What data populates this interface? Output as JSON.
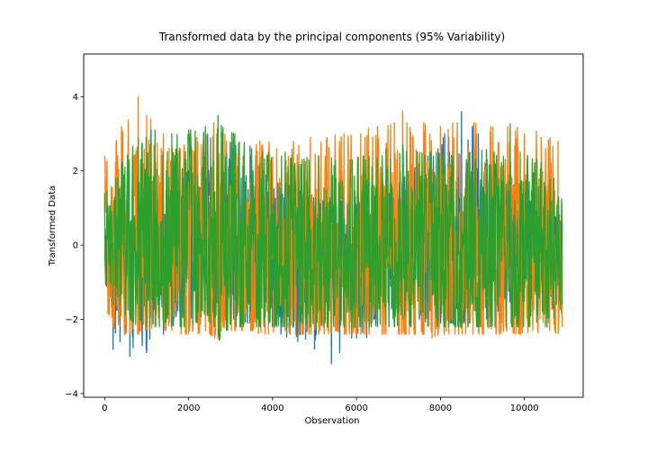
{
  "chart_data": {
    "type": "line",
    "title": "Transformed data by the principal components (95% Variability)",
    "xlabel": "Observation",
    "ylabel": "Transformed Data",
    "xlim": [
      -500,
      11400
    ],
    "ylim": [
      -4.1,
      5.15
    ],
    "xticks": [
      0,
      2000,
      4000,
      6000,
      8000,
      10000
    ],
    "xtick_labels": [
      "0",
      "2000",
      "4000",
      "6000",
      "8000",
      "10000"
    ],
    "yticks": [
      -4,
      -2,
      0,
      2,
      4
    ],
    "ytick_labels": [
      "−4",
      "−2",
      "0",
      "2",
      "4"
    ],
    "grid": false,
    "legend": "none",
    "n_observations": 10900,
    "series": [
      {
        "color": "#1f77b4",
        "x": [
          0,
          200,
          400,
          600,
          800,
          1000,
          1200,
          1400,
          1600,
          1800,
          2000,
          2200,
          2400,
          2600,
          2800,
          3000,
          3200,
          3400,
          3600,
          3800,
          4000,
          4200,
          4400,
          4600,
          4800,
          5000,
          5200,
          5400,
          5500,
          5600,
          5800,
          6000,
          6150,
          6300,
          6500,
          6700,
          6900,
          7100,
          7300,
          7500,
          7700,
          7900,
          8100,
          8300,
          8500,
          8700,
          8900,
          9100,
          9300,
          9500,
          9700,
          9900,
          10100,
          10300,
          10500,
          10700,
          10900
        ],
        "upper": [
          0.2,
          0.8,
          0.9,
          0.6,
          0.9,
          0.8,
          1.1,
          1.4,
          1.6,
          1.8,
          2.0,
          2.6,
          3.0,
          3.1,
          3.0,
          2.8,
          2.6,
          2.8,
          2.4,
          2.0,
          1.8,
          1.6,
          1.6,
          1.5,
          1.4,
          1.3,
          1.2,
          1.1,
          1.0,
          1.2,
          1.2,
          1.1,
          1.2,
          1.3,
          1.4,
          1.4,
          1.6,
          1.8,
          2.0,
          2.2,
          2.4,
          2.8,
          3.0,
          3.6,
          3.6,
          3.4,
          3.0,
          2.6,
          2.2,
          2.0,
          1.8,
          1.6,
          1.4,
          1.2,
          1.0,
          0.8,
          0.6
        ],
        "lower": [
          -2.0,
          -2.8,
          -3.1,
          -3.0,
          -3.1,
          -2.9,
          -2.6,
          -2.4,
          -2.2,
          -2.1,
          -2.0,
          -1.9,
          -1.8,
          -1.8,
          -1.9,
          -2.0,
          -2.0,
          -2.1,
          -2.1,
          -2.2,
          -2.3,
          -2.4,
          -2.5,
          -2.6,
          -2.7,
          -2.8,
          -2.9,
          -3.2,
          -3.6,
          -2.9,
          -2.6,
          -2.5,
          -3.5,
          -2.3,
          -2.2,
          -2.1,
          -2.1,
          -2.0,
          -2.0,
          -2.0,
          -2.1,
          -2.1,
          -2.1,
          -2.1,
          -2.1,
          -2.1,
          -2.0,
          -2.0,
          -2.0,
          -1.9,
          -1.9,
          -1.9,
          -2.0,
          -2.0,
          -2.0,
          -2.0,
          -1.9
        ]
      },
      {
        "color": "#ff7f0e",
        "x": [
          0,
          200,
          400,
          600,
          800,
          850,
          1000,
          1200,
          1400,
          1600,
          1800,
          2000,
          2200,
          2400,
          2600,
          2700,
          2900,
          3100,
          3300,
          3500,
          3700,
          3900,
          4100,
          4300,
          4500,
          4700,
          4900,
          5100,
          5300,
          5500,
          5700,
          5900,
          6100,
          6300,
          6500,
          6700,
          6900,
          7000,
          7200,
          7400,
          7600,
          7800,
          8000,
          8200,
          8400,
          8600,
          8800,
          9000,
          9200,
          9400,
          9600,
          9800,
          10000,
          10200,
          10400,
          10600,
          10800,
          10900
        ],
        "upper": [
          2.4,
          3.0,
          3.2,
          3.8,
          4.0,
          4.9,
          3.5,
          3.3,
          3.0,
          2.8,
          2.6,
          2.8,
          2.9,
          2.9,
          3.3,
          4.3,
          2.8,
          2.6,
          2.4,
          2.6,
          2.8,
          2.8,
          2.6,
          2.6,
          2.8,
          2.7,
          2.9,
          3.0,
          2.9,
          3.0,
          3.0,
          3.1,
          3.0,
          3.2,
          3.2,
          3.2,
          3.3,
          4.3,
          3.3,
          3.2,
          3.3,
          3.2,
          3.2,
          3.3,
          3.3,
          3.2,
          3.3,
          3.2,
          3.2,
          3.1,
          3.2,
          3.2,
          3.0,
          3.2,
          2.9,
          3.0,
          2.8,
          2.4
        ],
        "lower": [
          -1.6,
          -2.2,
          -2.4,
          -2.4,
          -2.4,
          -2.3,
          -2.3,
          -2.2,
          -2.3,
          -2.3,
          -2.4,
          -2.4,
          -2.4,
          -2.3,
          -2.5,
          -2.5,
          -2.3,
          -2.3,
          -2.3,
          -2.3,
          -2.4,
          -2.4,
          -2.3,
          -2.3,
          -2.4,
          -2.4,
          -2.4,
          -2.4,
          -2.4,
          -2.3,
          -2.4,
          -2.4,
          -2.4,
          -2.4,
          -2.4,
          -2.4,
          -2.4,
          -2.4,
          -2.4,
          -2.4,
          -2.4,
          -2.5,
          -2.4,
          -2.4,
          -2.4,
          -2.4,
          -2.4,
          -2.4,
          -2.4,
          -2.4,
          -2.3,
          -2.4,
          -2.4,
          -2.3,
          -2.4,
          -2.3,
          -2.4,
          -2.2
        ]
      },
      {
        "color": "#2ca02c",
        "x": [
          0,
          200,
          400,
          600,
          800,
          1000,
          1200,
          1400,
          1600,
          1800,
          2000,
          2200,
          2400,
          2600,
          2700,
          2900,
          3100,
          3300,
          3500,
          3700,
          3900,
          4100,
          4300,
          4500,
          4700,
          4900,
          5100,
          5300,
          5500,
          5700,
          5900,
          6100,
          6300,
          6500,
          6700,
          6900,
          7100,
          7300,
          7500,
          7700,
          7900,
          8100,
          8300,
          8500,
          8700,
          8900,
          9100,
          9300,
          9500,
          9700,
          9900,
          10100,
          10300,
          10500,
          10700,
          10900
        ],
        "upper": [
          1.4,
          2.0,
          2.2,
          2.6,
          2.9,
          3.2,
          3.1,
          2.9,
          3.0,
          3.0,
          3.1,
          3.2,
          3.2,
          3.1,
          3.5,
          3.1,
          3.0,
          2.8,
          2.6,
          2.6,
          2.5,
          2.6,
          2.5,
          2.4,
          2.3,
          2.4,
          2.4,
          2.4,
          2.3,
          2.3,
          2.3,
          2.4,
          2.4,
          2.5,
          2.6,
          2.7,
          2.7,
          2.6,
          2.5,
          2.5,
          2.5,
          2.5,
          2.4,
          2.4,
          2.5,
          2.6,
          2.5,
          2.5,
          2.4,
          3.5,
          2.5,
          2.4,
          2.3,
          2.2,
          1.8,
          1.2
        ],
        "lower": [
          -1.0,
          -1.6,
          -1.8,
          -2.0,
          -2.2,
          -2.2,
          -2.2,
          -2.2,
          -2.2,
          -2.2,
          -2.2,
          -2.1,
          -2.0,
          -2.2,
          -2.6,
          -2.3,
          -2.2,
          -2.2,
          -2.2,
          -2.2,
          -2.2,
          -2.2,
          -2.2,
          -2.2,
          -2.1,
          -2.2,
          -2.2,
          -2.2,
          -2.2,
          -2.2,
          -2.2,
          -2.2,
          -2.2,
          -2.2,
          -2.2,
          -2.2,
          -2.2,
          -2.2,
          -2.2,
          -2.2,
          -2.2,
          -2.2,
          -2.2,
          -2.2,
          -2.2,
          -2.2,
          -2.2,
          -2.2,
          -2.2,
          -2.2,
          -2.2,
          -2.2,
          -2.2,
          -2.2,
          -2.2,
          -1.6
        ]
      }
    ]
  }
}
